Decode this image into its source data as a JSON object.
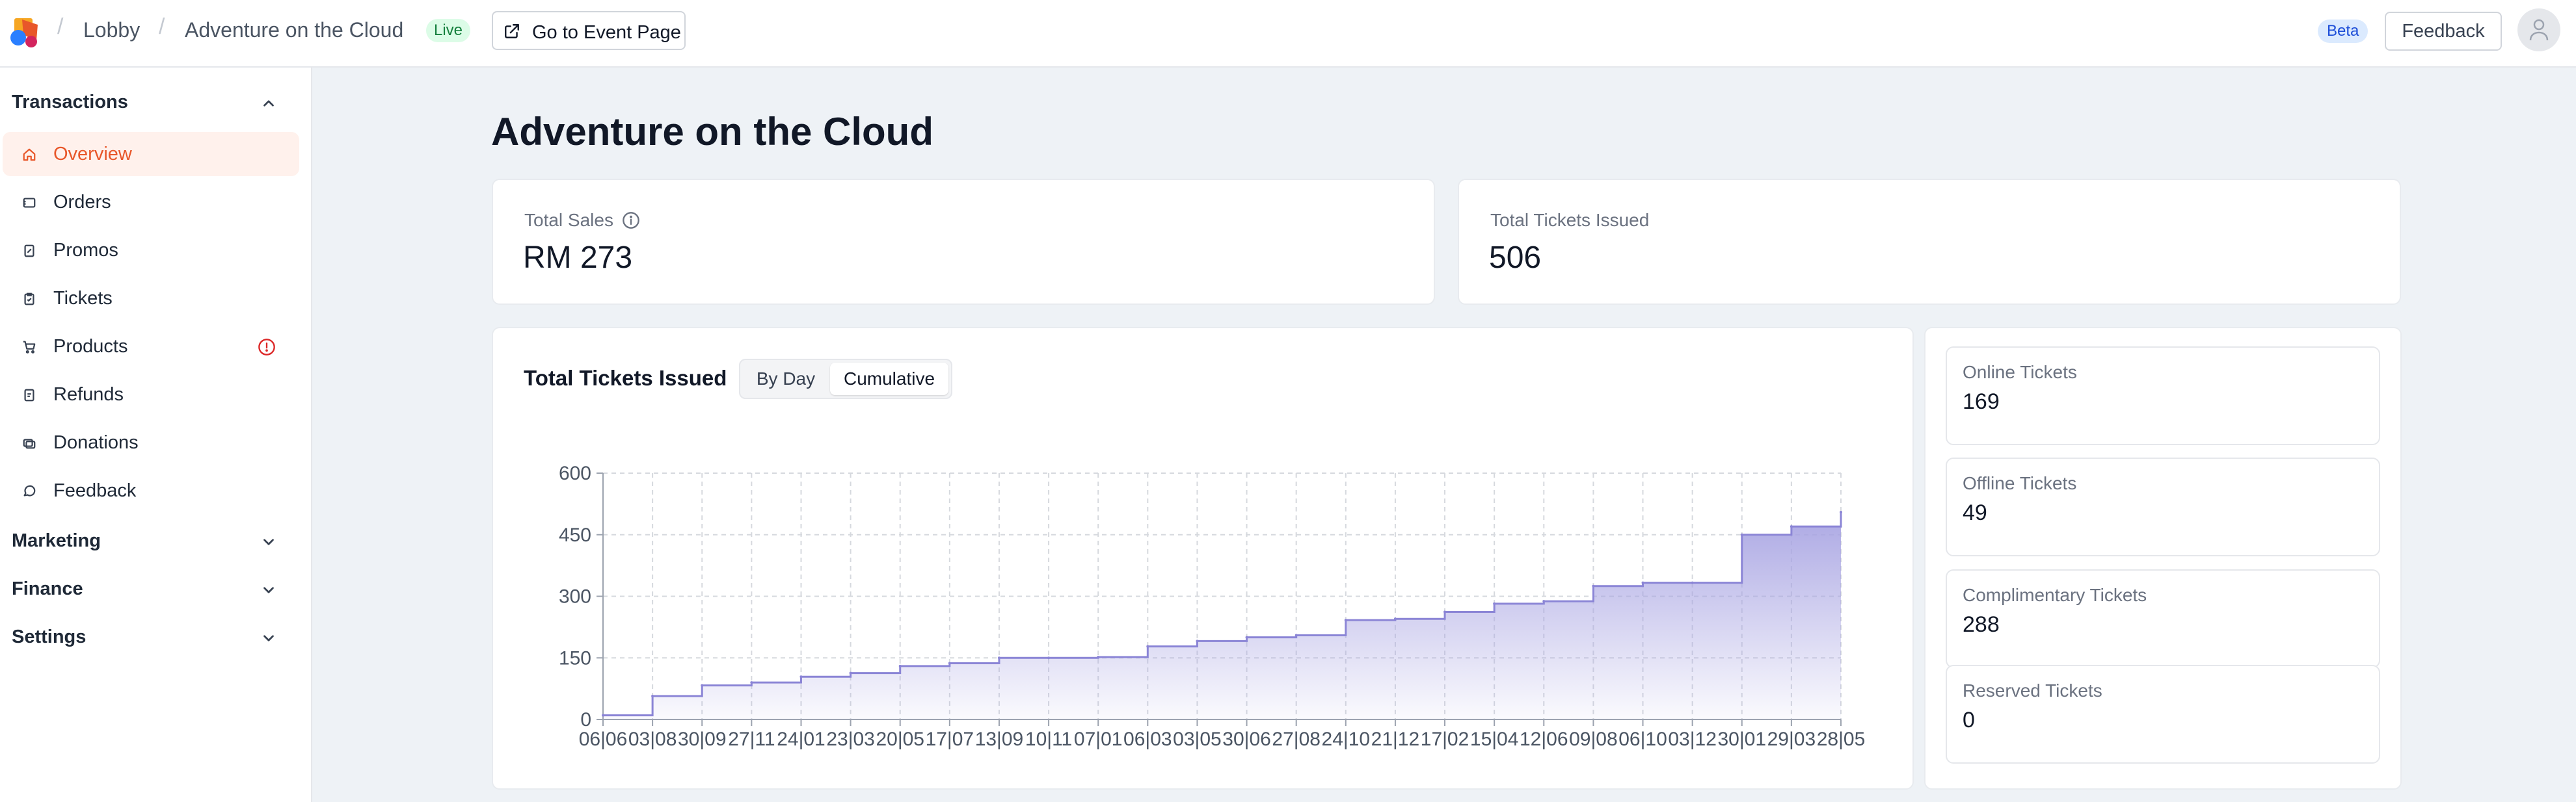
{
  "header": {
    "breadcrumb": [
      "Lobby",
      "Adventure on the Cloud"
    ],
    "live_badge": "Live",
    "event_button": "Go to Event Page",
    "beta_badge": "Beta",
    "feedback_button": "Feedback"
  },
  "sidebar": {
    "sections": [
      {
        "label": "Transactions",
        "expanded": true
      },
      {
        "label": "Marketing",
        "expanded": false
      },
      {
        "label": "Finance",
        "expanded": false
      },
      {
        "label": "Settings",
        "expanded": false
      }
    ],
    "items": [
      {
        "label": "Overview",
        "icon": "home-icon",
        "active": true
      },
      {
        "label": "Orders",
        "icon": "receipt-icon"
      },
      {
        "label": "Promos",
        "icon": "promo-icon"
      },
      {
        "label": "Tickets",
        "icon": "ticket-icon"
      },
      {
        "label": "Products",
        "icon": "cart-icon",
        "warning": true
      },
      {
        "label": "Refunds",
        "icon": "refund-icon"
      },
      {
        "label": "Donations",
        "icon": "donation-icon"
      },
      {
        "label": "Feedback",
        "icon": "chat-icon"
      }
    ]
  },
  "main": {
    "title": "Adventure on the Cloud",
    "stats": [
      {
        "label": "Total Sales",
        "value": "RM 273"
      },
      {
        "label": "Total Tickets Issued",
        "value": "506"
      }
    ],
    "chart_card": {
      "title": "Total Tickets Issued",
      "toggle": [
        "By Day",
        "Cumulative"
      ],
      "selected": "Cumulative"
    },
    "ticket_breakdown": [
      {
        "label": "Online Tickets",
        "value": "169"
      },
      {
        "label": "Offline Tickets",
        "value": "49"
      },
      {
        "label": "Complimentary Tickets",
        "value": "288"
      },
      {
        "label": "Reserved Tickets",
        "value": "0"
      }
    ]
  },
  "colors": {
    "accent": "#e8572a",
    "chart_line": "#8b85d6",
    "chart_fill": "#a7a3e2",
    "live": "#15803d",
    "beta": "#1d4ed8"
  },
  "chart_data": {
    "type": "area",
    "title": "Total Tickets Issued",
    "ylim": [
      0,
      600
    ],
    "yticks": [
      0,
      150,
      300,
      450,
      600
    ],
    "categories": [
      "06|06",
      "03|08",
      "30|09",
      "27|11",
      "24|01",
      "23|03",
      "20|05",
      "17|07",
      "13|09",
      "10|11",
      "07|01",
      "06|03",
      "03|05",
      "30|06",
      "27|08",
      "24|10",
      "21|12",
      "17|02",
      "15|04",
      "12|06",
      "09|08",
      "06|10",
      "03|12",
      "30|01",
      "29|03",
      "28|05"
    ],
    "series": [
      {
        "values": [
          10,
          57,
          83,
          90,
          104,
          113,
          130,
          137,
          150,
          150,
          152,
          178,
          191,
          200,
          205,
          242,
          245,
          262,
          282,
          288,
          325,
          333,
          333,
          450,
          470,
          505
        ]
      }
    ],
    "grid": true
  }
}
